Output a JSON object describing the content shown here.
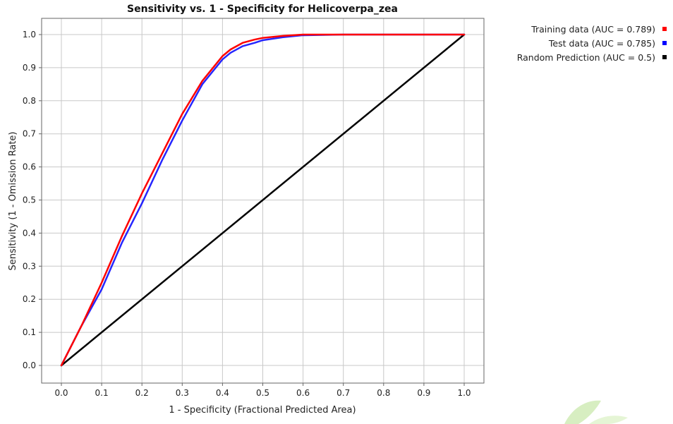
{
  "chart_data": {
    "type": "line",
    "title": "Sensitivity vs. 1 - Specificity for Helicoverpa_zea",
    "xlabel": "1 - Specificity  (Fractional Predicted Area)",
    "ylabel": "Sensitivity  (1 - Omission Rate)",
    "xlim": [
      -0.05,
      1.05
    ],
    "ylim": [
      -0.05,
      1.05
    ],
    "grid": true,
    "legend_position": "top-right, outside plot",
    "x_ticks": [
      "0.0",
      "0.1",
      "0.2",
      "0.3",
      "0.4",
      "0.5",
      "0.6",
      "0.7",
      "0.8",
      "0.9",
      "1.0"
    ],
    "y_ticks": [
      "0.0",
      "0.1",
      "0.2",
      "0.3",
      "0.4",
      "0.5",
      "0.6",
      "0.7",
      "0.8",
      "0.9",
      "1.0"
    ],
    "series": [
      {
        "name": "Training data (AUC = 0.789)",
        "color": "#ff0000",
        "x": [
          0.0,
          0.05,
          0.1,
          0.15,
          0.2,
          0.25,
          0.3,
          0.35,
          0.38,
          0.4,
          0.42,
          0.45,
          0.48,
          0.5,
          0.55,
          0.6,
          0.7,
          0.8,
          0.9,
          1.0
        ],
        "y": [
          0.0,
          0.12,
          0.25,
          0.39,
          0.52,
          0.64,
          0.76,
          0.86,
          0.905,
          0.935,
          0.955,
          0.975,
          0.985,
          0.99,
          0.996,
          1.0,
          1.0,
          1.0,
          1.0,
          1.0
        ]
      },
      {
        "name": "Test data (AUC = 0.785)",
        "color": "#0000ff",
        "x": [
          0.0,
          0.05,
          0.1,
          0.15,
          0.2,
          0.25,
          0.3,
          0.35,
          0.38,
          0.4,
          0.42,
          0.45,
          0.48,
          0.5,
          0.55,
          0.6,
          0.7,
          0.8,
          0.9,
          1.0
        ],
        "y": [
          0.0,
          0.12,
          0.23,
          0.37,
          0.49,
          0.62,
          0.74,
          0.85,
          0.895,
          0.925,
          0.945,
          0.965,
          0.975,
          0.983,
          0.992,
          0.998,
          1.0,
          1.0,
          1.0,
          1.0
        ]
      },
      {
        "name": "Random Prediction (AUC = 0.5)",
        "color": "#000000",
        "x": [
          0.0,
          1.0
        ],
        "y": [
          0.0,
          1.0
        ]
      }
    ]
  }
}
